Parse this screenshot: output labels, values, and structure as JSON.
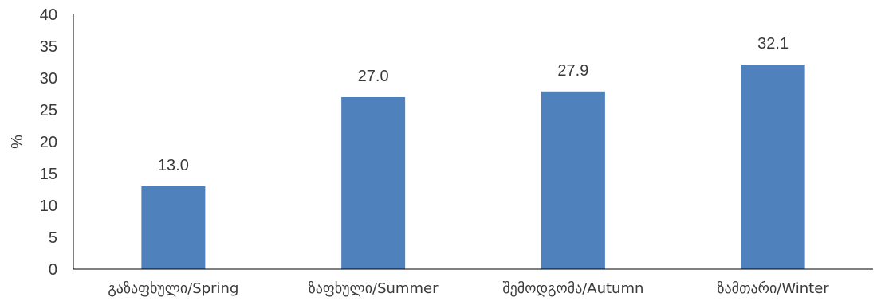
{
  "chart_data": {
    "type": "bar",
    "categories": [
      "გაზაფხული/Spring",
      "ზაფხული/Summer",
      "შემოდგომა/Autumn",
      "ზამთარი/Winter"
    ],
    "values": [
      13.0,
      27.0,
      27.9,
      32.1
    ],
    "data_labels": [
      "13.0",
      "27.0",
      "27.9",
      "32.1"
    ],
    "title": "",
    "xlabel": "",
    "ylabel": "%",
    "ylim": [
      0,
      40
    ],
    "yticks": [
      0,
      5,
      10,
      15,
      20,
      25,
      30,
      35,
      40
    ],
    "grid": false,
    "legend": "none",
    "bar_color": "#4f81bd",
    "axis_color": "#000000"
  }
}
